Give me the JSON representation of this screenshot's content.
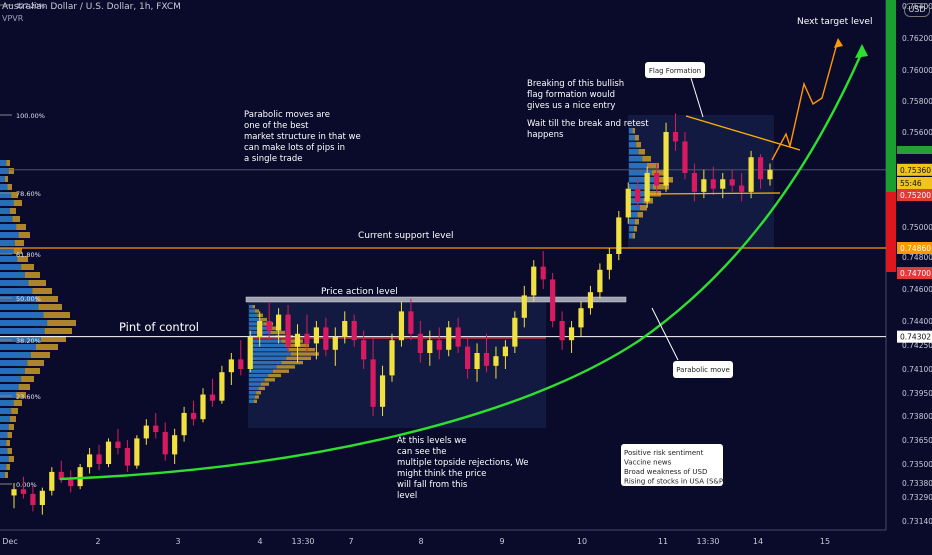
{
  "header": {
    "symbol": "Australian Dollar / U.S. Dollar, 1h, FXCM",
    "indicator": "VPVR",
    "currency_button": "USD"
  },
  "chart_data": {
    "type": "candlestick",
    "y_axis": {
      "ticks": [
        "0.76400",
        "0.76200",
        "0.76000",
        "0.75800",
        "0.75600",
        "0.75200",
        "0.75000",
        "0.74800",
        "0.74600",
        "0.74400",
        "0.74250",
        "0.74100",
        "0.73950",
        "0.73800",
        "0.73650",
        "0.73500",
        "0.73380",
        "0.73290",
        "0.73140"
      ],
      "tick_values": [
        0.764,
        0.762,
        0.76,
        0.758,
        0.756,
        0.752,
        0.75,
        0.748,
        0.746,
        0.744,
        0.7425,
        0.741,
        0.7395,
        0.738,
        0.7365,
        0.735,
        0.7338,
        0.7329,
        0.7314
      ]
    },
    "x_axis": {
      "ticks": [
        "Dec",
        "2",
        "3",
        "4",
        "13:30",
        "7",
        "8",
        "9",
        "10",
        "11",
        "13:30",
        "14",
        "15"
      ]
    },
    "price_tags": [
      {
        "text": "0.75360",
        "color": "#f0c419"
      },
      {
        "text": "55:46",
        "color": "#f0c419"
      },
      {
        "text": "0.75200",
        "color": "#e53935"
      },
      {
        "text": "0.74860",
        "color": "#ff9800"
      },
      {
        "text": "0.74700",
        "color": "#e53935"
      },
      {
        "text": "0.74302",
        "color": "#ffffff"
      }
    ],
    "fib_levels": [
      "127.20%",
      "100.00%",
      "78.60%",
      "61.80%",
      "50.00%",
      "38.20%",
      "23.60%",
      "0.00%"
    ],
    "candles": [
      [
        0.733,
        0.7338,
        0.7322,
        0.7334
      ],
      [
        0.7334,
        0.7342,
        0.7328,
        0.7331
      ],
      [
        0.7331,
        0.7336,
        0.732,
        0.7324
      ],
      [
        0.7324,
        0.7335,
        0.7318,
        0.7333
      ],
      [
        0.7333,
        0.7348,
        0.733,
        0.7345
      ],
      [
        0.7345,
        0.7352,
        0.7338,
        0.734
      ],
      [
        0.734,
        0.7346,
        0.7332,
        0.7336
      ],
      [
        0.7336,
        0.735,
        0.7334,
        0.7348
      ],
      [
        0.7348,
        0.736,
        0.7344,
        0.7356
      ],
      [
        0.7356,
        0.7362,
        0.7346,
        0.735
      ],
      [
        0.735,
        0.7366,
        0.7348,
        0.7364
      ],
      [
        0.7364,
        0.7372,
        0.7356,
        0.736
      ],
      [
        0.736,
        0.7365,
        0.7345,
        0.7349
      ],
      [
        0.7349,
        0.7368,
        0.7347,
        0.7366
      ],
      [
        0.7366,
        0.7378,
        0.7362,
        0.7374
      ],
      [
        0.7374,
        0.7382,
        0.7366,
        0.737
      ],
      [
        0.737,
        0.7376,
        0.7352,
        0.7356
      ],
      [
        0.7356,
        0.7372,
        0.735,
        0.7368
      ],
      [
        0.7368,
        0.7386,
        0.7364,
        0.7382
      ],
      [
        0.7382,
        0.739,
        0.7374,
        0.7378
      ],
      [
        0.7378,
        0.7398,
        0.7376,
        0.7394
      ],
      [
        0.7394,
        0.7404,
        0.7386,
        0.739
      ],
      [
        0.739,
        0.7412,
        0.7388,
        0.7408
      ],
      [
        0.7408,
        0.742,
        0.74,
        0.7416
      ],
      [
        0.7416,
        0.7428,
        0.7406,
        0.741
      ],
      [
        0.741,
        0.7434,
        0.7408,
        0.743
      ],
      [
        0.743,
        0.7446,
        0.7424,
        0.744
      ],
      [
        0.744,
        0.7452,
        0.7428,
        0.7434
      ],
      [
        0.7434,
        0.7448,
        0.7426,
        0.7444
      ],
      [
        0.7444,
        0.745,
        0.742,
        0.7424
      ],
      [
        0.7424,
        0.7438,
        0.7414,
        0.7432
      ],
      [
        0.7432,
        0.7444,
        0.742,
        0.7426
      ],
      [
        0.7426,
        0.744,
        0.7416,
        0.7436
      ],
      [
        0.7436,
        0.7442,
        0.7418,
        0.7422
      ],
      [
        0.7422,
        0.7436,
        0.7412,
        0.743
      ],
      [
        0.743,
        0.7446,
        0.7426,
        0.744
      ],
      [
        0.744,
        0.7444,
        0.7424,
        0.7428
      ],
      [
        0.7428,
        0.7434,
        0.741,
        0.7416
      ],
      [
        0.7416,
        0.743,
        0.738,
        0.7386
      ],
      [
        0.7386,
        0.7412,
        0.738,
        0.7406
      ],
      [
        0.7406,
        0.7432,
        0.7402,
        0.7428
      ],
      [
        0.7428,
        0.7452,
        0.7424,
        0.7446
      ],
      [
        0.7446,
        0.7454,
        0.7428,
        0.7432
      ],
      [
        0.7432,
        0.744,
        0.7414,
        0.742
      ],
      [
        0.742,
        0.7434,
        0.7412,
        0.7428
      ],
      [
        0.7428,
        0.7436,
        0.7416,
        0.7422
      ],
      [
        0.7422,
        0.744,
        0.7418,
        0.7436
      ],
      [
        0.7436,
        0.7442,
        0.742,
        0.7424
      ],
      [
        0.7424,
        0.743,
        0.7404,
        0.741
      ],
      [
        0.741,
        0.7426,
        0.7402,
        0.742
      ],
      [
        0.742,
        0.7432,
        0.7408,
        0.7412
      ],
      [
        0.7412,
        0.7424,
        0.7404,
        0.7418
      ],
      [
        0.7418,
        0.7428,
        0.741,
        0.7424
      ],
      [
        0.7424,
        0.7446,
        0.742,
        0.7442
      ],
      [
        0.7442,
        0.7462,
        0.7436,
        0.7456
      ],
      [
        0.7456,
        0.7478,
        0.7452,
        0.7474
      ],
      [
        0.7474,
        0.7484,
        0.746,
        0.7466
      ],
      [
        0.7466,
        0.747,
        0.7436,
        0.744
      ],
      [
        0.744,
        0.7446,
        0.7422,
        0.7428
      ],
      [
        0.7428,
        0.744,
        0.742,
        0.7436
      ],
      [
        0.7436,
        0.7452,
        0.743,
        0.7448
      ],
      [
        0.7448,
        0.7462,
        0.7444,
        0.7458
      ],
      [
        0.7458,
        0.7476,
        0.7454,
        0.7472
      ],
      [
        0.7472,
        0.7486,
        0.7466,
        0.7482
      ],
      [
        0.7482,
        0.751,
        0.7478,
        0.7506
      ],
      [
        0.7506,
        0.7528,
        0.7502,
        0.7524
      ],
      [
        0.7524,
        0.753,
        0.7512,
        0.7516
      ],
      [
        0.7516,
        0.7538,
        0.7512,
        0.7534
      ],
      [
        0.7534,
        0.754,
        0.752,
        0.7526
      ],
      [
        0.7526,
        0.7566,
        0.7522,
        0.756
      ],
      [
        0.756,
        0.7572,
        0.7548,
        0.7554
      ],
      [
        0.7554,
        0.756,
        0.753,
        0.7534
      ],
      [
        0.7534,
        0.754,
        0.7516,
        0.7522
      ],
      [
        0.7522,
        0.7536,
        0.7518,
        0.753
      ],
      [
        0.753,
        0.7538,
        0.752,
        0.7524
      ],
      [
        0.7524,
        0.7534,
        0.7518,
        0.753
      ],
      [
        0.753,
        0.7536,
        0.7522,
        0.7526
      ],
      [
        0.7526,
        0.7534,
        0.7516,
        0.7522
      ],
      [
        0.7522,
        0.7548,
        0.7518,
        0.7544
      ],
      [
        0.7544,
        0.7546,
        0.7524,
        0.753
      ],
      [
        0.753,
        0.754,
        0.7526,
        0.7536
      ]
    ],
    "lines": [
      {
        "name": "Current support level",
        "price": 0.7486
      },
      {
        "name": "Pint of control",
        "price": 0.74302
      },
      {
        "name": "Price action level",
        "price": 0.7455
      }
    ],
    "annotations": {
      "next_target": "Next target level",
      "parabolic_note": "Parabolic moves are one of the best market structure in that we can make lots of pips in a single trade",
      "breaking_note_1": "Breaking of this bullish flag formation would gives us a nice entry",
      "breaking_note_2": "Wait till the break and retest happens",
      "flag_formation": "Flag Formation",
      "current_support": "Current support level",
      "price_action": "Price action level",
      "pint_of_control": "Pint of control",
      "parabolic_move": "Parabolic move",
      "rejections_note": "At this levels we can see the multiple topside rejections, We might think the price will fall from this level",
      "fundamentals": [
        "Positive risk sentiment",
        "Vaccine news",
        "Broad weakness of USD",
        "Rising of stocks in USA (S&P)"
      ]
    },
    "colors": {
      "up": "#f0e040",
      "down": "#d81b60",
      "curve": "#2ee02e",
      "support": "#ff9800",
      "poc": "#ffffff",
      "flag": "#ffb300",
      "profile_up": "#2f7fcf",
      "profile_down": "#c89b2c"
    }
  }
}
